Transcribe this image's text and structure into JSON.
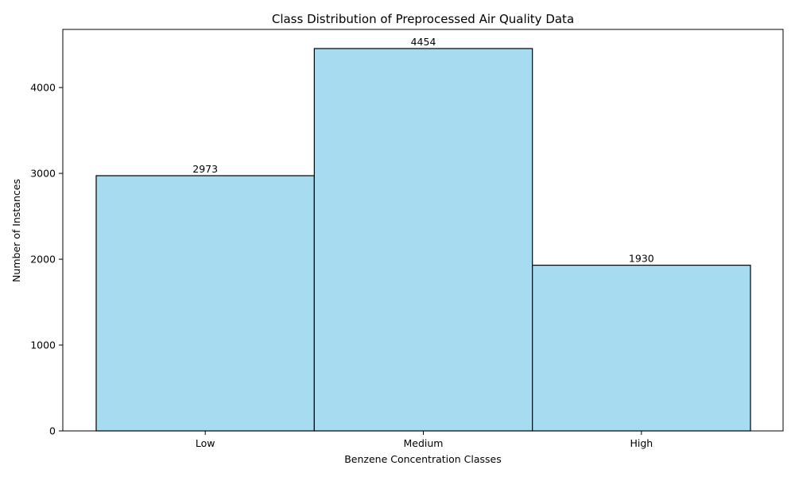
{
  "chart_data": {
    "type": "bar",
    "title": "Class Distribution of Preprocessed Air Quality Data",
    "xlabel": "Benzene Concentration Classes",
    "ylabel": "Number of Instances",
    "categories": [
      "Low",
      "Medium",
      "High"
    ],
    "values": [
      2973,
      4454,
      1930
    ],
    "data_labels": [
      "2973",
      "4454",
      "1930"
    ],
    "ylim": [
      0,
      4677
    ],
    "yticks": [
      0,
      1000,
      2000,
      3000,
      4000
    ],
    "ytick_labels": [
      "0",
      "1000",
      "2000",
      "3000",
      "4000"
    ],
    "grid": false,
    "legend": "none",
    "bar_color": "#a6dbf0",
    "bar_edge_color": "#000000"
  }
}
